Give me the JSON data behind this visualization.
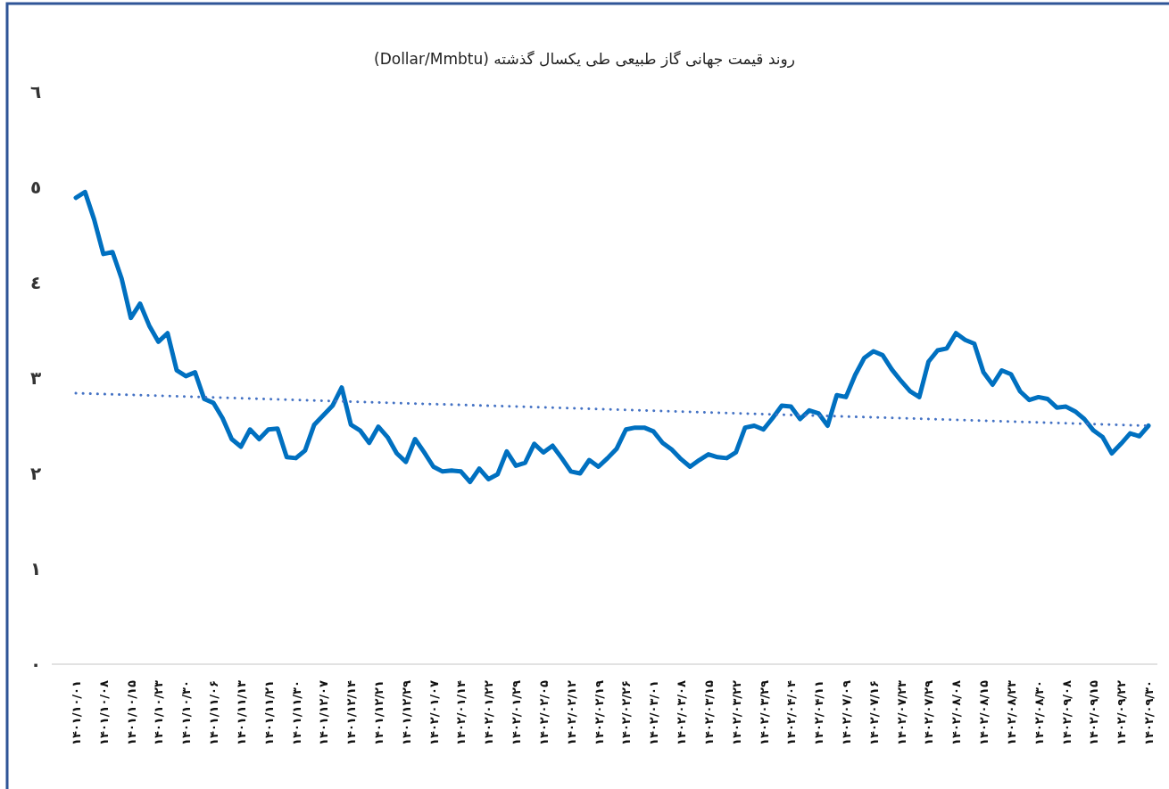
{
  "chart_data": {
    "type": "line",
    "title": "روند قیمت جهانی گاز طبیعی طی یکسال گذشته (Dollar/Mmbtu)",
    "categories": [
      "۱۴۰۱/۱۰/۰۱",
      null,
      null,
      "۱۴۰۱/۱۰/۰۸",
      null,
      null,
      "۱۴۰۱/۱۰/۱۵",
      null,
      null,
      "۱۴۰۱/۱۰/۲۳",
      null,
      null,
      "۱۴۰۱/۱۰/۳۰",
      null,
      null,
      "۱۴۰۱/۱۱/۰۶",
      null,
      null,
      "۱۴۰۱/۱۱/۱۳",
      null,
      null,
      "۱۴۰۱/۱۱/۲۱",
      null,
      null,
      "۱۴۰۱/۱۱/۳۰",
      null,
      null,
      "۱۴۰۱/۱۲/۰۷",
      null,
      null,
      "۱۴۰۱/۱۲/۱۴",
      null,
      null,
      "۱۴۰۱/۱۲/۲۱",
      null,
      null,
      "۱۴۰۱/۱۲/۲۹",
      null,
      null,
      "۱۴۰۲/۰۱/۰۷",
      null,
      null,
      "۱۴۰۲/۰۱/۱۴",
      null,
      null,
      "۱۴۰۲/۰۱/۲۲",
      null,
      null,
      "۱۴۰۲/۰۱/۲۹",
      null,
      null,
      "۱۴۰۲/۰۲/۰۵",
      null,
      null,
      "۱۴۰۲/۰۲/۱۲",
      null,
      null,
      "۱۴۰۲/۰۲/۱۹",
      null,
      null,
      "۱۴۰۲/۰۲/۲۶",
      null,
      null,
      "۱۴۰۲/۰۳/۰۱",
      null,
      null,
      "۱۴۰۲/۰۳/۰۸",
      null,
      null,
      "۱۴۰۲/۰۳/۱۵",
      null,
      null,
      "۱۴۰۲/۰۳/۲۲",
      null,
      null,
      "۱۴۰۲/۰۳/۲۹",
      null,
      null,
      "۱۴۰۲/۰۴/۰۴",
      null,
      null,
      "۱۴۰۲/۰۴/۱۱",
      null,
      null,
      "۱۴۰۲/۰۷/۰۹",
      null,
      null,
      "۱۴۰۲/۰۷/۱۶",
      null,
      null,
      "۱۴۰۲/۰۷/۲۳",
      null,
      null,
      "۱۴۰۲/۰۷/۲۹",
      null,
      null,
      "۱۴۰۲/۰۸/۰۸",
      null,
      null,
      "۱۴۰۲/۰۸/۱۵",
      null,
      null,
      "۱۴۰۲/۰۸/۲۳",
      null,
      null,
      "۱۴۰۲/۰۸/۳۰",
      null,
      null,
      "۱۴۰۲/۰۹/۰۸",
      null,
      null,
      "۱۴۰۲/۰۹/۱۵",
      null,
      null,
      "۱۴۰۲/۰۹/۲۲",
      null,
      null,
      "۱۴۰۲/۰۹/۳۰"
    ],
    "series": [
      {
        "color": "#0070c0",
        "line_style": "solid",
        "values": [
          4.89,
          4.95,
          4.66,
          4.3,
          4.32,
          4.04,
          3.63,
          3.78,
          3.55,
          3.38,
          3.47,
          3.08,
          3.02,
          3.06,
          2.78,
          2.74,
          2.58,
          2.36,
          2.28,
          2.46,
          2.36,
          2.46,
          2.47,
          2.17,
          2.16,
          2.24,
          2.51,
          2.61,
          2.71,
          2.9,
          2.51,
          2.45,
          2.32,
          2.49,
          2.38,
          2.21,
          2.12,
          2.36,
          2.22,
          2.07,
          2.02,
          2.03,
          2.02,
          1.91,
          2.05,
          1.94,
          1.99,
          2.23,
          2.08,
          2.11,
          2.31,
          2.22,
          2.29,
          2.16,
          2.02,
          2.0,
          2.14,
          2.07,
          2.16,
          2.26,
          2.46,
          2.48,
          2.48,
          2.44,
          2.32,
          2.25,
          2.15,
          2.07,
          2.14,
          2.2,
          2.17,
          2.16,
          2.22,
          2.48,
          2.5,
          2.46,
          2.58,
          2.71,
          2.7,
          2.57,
          2.66,
          2.63,
          2.5,
          2.82,
          2.8,
          3.03,
          3.21,
          3.28,
          3.24,
          3.09,
          2.97,
          2.86,
          2.8,
          3.17,
          3.29,
          3.31,
          3.47,
          3.4,
          3.36,
          3.06,
          2.93,
          3.08,
          3.04,
          2.86,
          2.77,
          2.8,
          2.78,
          2.69,
          2.7,
          2.65,
          2.57,
          2.45,
          2.38,
          2.21,
          2.31,
          2.42,
          2.39,
          2.5
        ]
      },
      {
        "type": "line",
        "color": "#4472c4",
        "line_style": "dotted",
        "x": [
          "۱۴۰۱/۱۰/۰۱",
          "۱۴۰۲/۰۹/۳۰"
        ],
        "values": [
          2.84,
          2.5
        ]
      }
    ],
    "ylim": [
      0,
      6
    ],
    "yticks": [
      {
        "value": 0,
        "label": "٠"
      },
      {
        "value": 1,
        "label": "١"
      },
      {
        "value": 2,
        "label": "٢"
      },
      {
        "value": 3,
        "label": "٣"
      },
      {
        "value": 4,
        "label": "٤"
      },
      {
        "value": 5,
        "label": "٥"
      },
      {
        "value": 6,
        "label": "٦"
      }
    ],
    "grid": false,
    "marker": "none"
  }
}
